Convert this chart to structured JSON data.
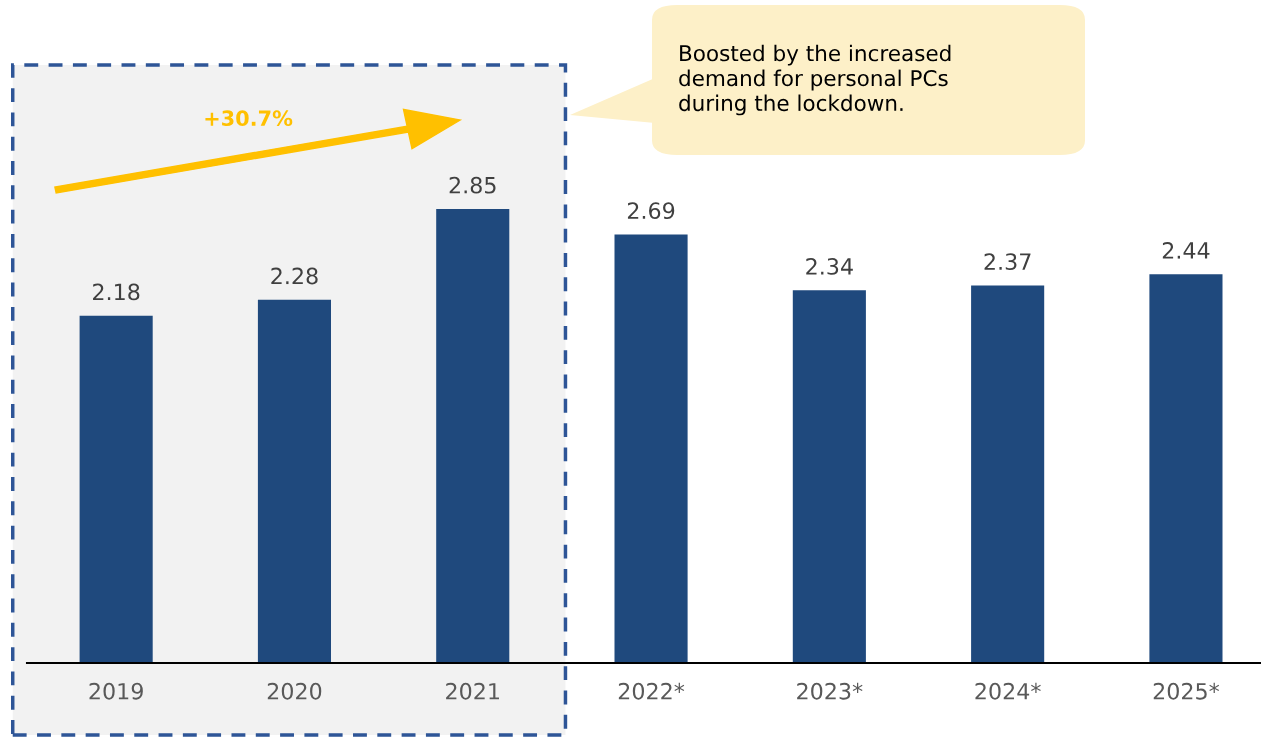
{
  "chart_data": {
    "type": "bar",
    "categories": [
      "2019",
      "2020",
      "2021",
      "2022*",
      "2023*",
      "2024*",
      "2025*"
    ],
    "values": [
      2.18,
      2.28,
      2.85,
      2.69,
      2.34,
      2.37,
      2.44
    ],
    "color": "#1f497d",
    "data_labels": true,
    "tick_labels": "x",
    "grid": false,
    "bands": [
      {
        "axis": "x",
        "from": "2019",
        "to": "2021",
        "color": "#f2f2f2"
      }
    ],
    "annotations": [
      "+30.7%",
      "Boosted by the increased\ndemand for personal PCs\nduring the lockdown."
    ]
  }
}
